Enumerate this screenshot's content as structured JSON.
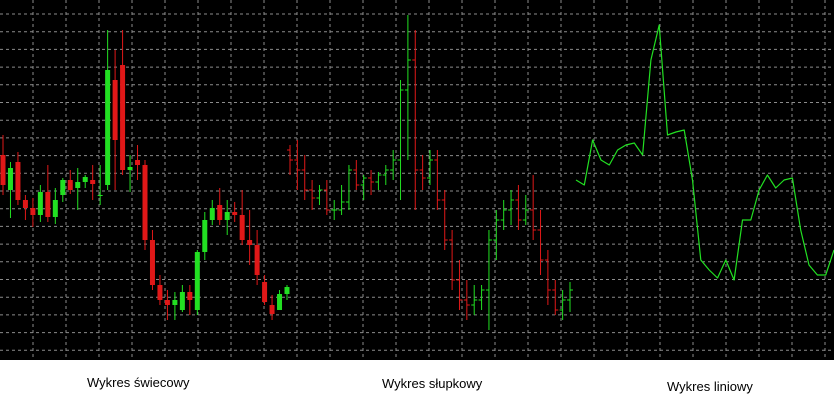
{
  "captions": {
    "candlestick": "Wykres świecowy",
    "bar": "Wykres słupkowy",
    "line": "Wykres liniowy"
  },
  "colors": {
    "background": "#000000",
    "grid": "#8c8c8c",
    "up": "#22e022",
    "down": "#e01818",
    "line": "#22e022"
  },
  "chart_data": [
    {
      "type": "candlestick",
      "title": "Wykres świecowy",
      "grid": true,
      "ylim": [
        0,
        360
      ],
      "candles": [
        {
          "o": 205,
          "h": 225,
          "l": 165,
          "c": 175
        },
        {
          "o": 170,
          "h": 198,
          "l": 142,
          "c": 192
        },
        {
          "o": 198,
          "h": 208,
          "l": 155,
          "c": 160
        },
        {
          "o": 160,
          "h": 165,
          "l": 140,
          "c": 152
        },
        {
          "o": 152,
          "h": 162,
          "l": 133,
          "c": 145
        },
        {
          "o": 145,
          "h": 175,
          "l": 138,
          "c": 168
        },
        {
          "o": 168,
          "h": 195,
          "l": 138,
          "c": 143
        },
        {
          "o": 143,
          "h": 172,
          "l": 136,
          "c": 160
        },
        {
          "o": 165,
          "h": 182,
          "l": 158,
          "c": 180
        },
        {
          "o": 180,
          "h": 190,
          "l": 166,
          "c": 170
        },
        {
          "o": 172,
          "h": 192,
          "l": 150,
          "c": 178
        },
        {
          "o": 178,
          "h": 185,
          "l": 172,
          "c": 183
        },
        {
          "o": 180,
          "h": 195,
          "l": 160,
          "c": 176
        },
        {
          "o": 165,
          "h": 195,
          "l": 155,
          "c": 165
        },
        {
          "o": 175,
          "h": 330,
          "l": 170,
          "c": 290
        },
        {
          "o": 280,
          "h": 310,
          "l": 170,
          "c": 220
        },
        {
          "o": 295,
          "h": 330,
          "l": 185,
          "c": 190
        },
        {
          "o": 190,
          "h": 205,
          "l": 168,
          "c": 193
        },
        {
          "o": 200,
          "h": 215,
          "l": 180,
          "c": 195
        },
        {
          "o": 195,
          "h": 200,
          "l": 110,
          "c": 120
        },
        {
          "o": 120,
          "h": 130,
          "l": 70,
          "c": 75
        },
        {
          "o": 75,
          "h": 85,
          "l": 55,
          "c": 60
        },
        {
          "o": 60,
          "h": 70,
          "l": 40,
          "c": 55
        },
        {
          "o": 55,
          "h": 68,
          "l": 40,
          "c": 60
        },
        {
          "o": 50,
          "h": 75,
          "l": 48,
          "c": 68
        },
        {
          "o": 68,
          "h": 75,
          "l": 45,
          "c": 60
        },
        {
          "o": 50,
          "h": 110,
          "l": 45,
          "c": 108
        },
        {
          "o": 108,
          "h": 148,
          "l": 100,
          "c": 140
        },
        {
          "o": 140,
          "h": 160,
          "l": 135,
          "c": 152
        },
        {
          "o": 155,
          "h": 172,
          "l": 135,
          "c": 140
        },
        {
          "o": 140,
          "h": 160,
          "l": 125,
          "c": 148
        },
        {
          "o": 148,
          "h": 158,
          "l": 138,
          "c": 145
        },
        {
          "o": 145,
          "h": 170,
          "l": 115,
          "c": 120
        },
        {
          "o": 120,
          "h": 150,
          "l": 95,
          "c": 115
        },
        {
          "o": 115,
          "h": 130,
          "l": 75,
          "c": 85
        },
        {
          "o": 78,
          "h": 85,
          "l": 55,
          "c": 58
        },
        {
          "o": 55,
          "h": 65,
          "l": 40,
          "c": 46
        },
        {
          "o": 50,
          "h": 70,
          "l": 50,
          "c": 66
        },
        {
          "o": 66,
          "h": 75,
          "l": 60,
          "c": 73
        }
      ]
    },
    {
      "type": "bar",
      "title": "Wykres słupkowy",
      "grid": true,
      "ylim": [
        0,
        360
      ],
      "bars": [
        {
          "o": 210,
          "h": 215,
          "l": 185,
          "c": 200
        },
        {
          "o": 200,
          "h": 220,
          "l": 170,
          "c": 190
        },
        {
          "o": 190,
          "h": 205,
          "l": 160,
          "c": 170
        },
        {
          "o": 170,
          "h": 180,
          "l": 150,
          "c": 162
        },
        {
          "o": 162,
          "h": 175,
          "l": 155,
          "c": 170
        },
        {
          "o": 170,
          "h": 180,
          "l": 145,
          "c": 150
        },
        {
          "o": 150,
          "h": 160,
          "l": 140,
          "c": 150
        },
        {
          "o": 150,
          "h": 175,
          "l": 145,
          "c": 158
        },
        {
          "o": 158,
          "h": 195,
          "l": 150,
          "c": 190
        },
        {
          "o": 190,
          "h": 200,
          "l": 170,
          "c": 175
        },
        {
          "o": 175,
          "h": 185,
          "l": 160,
          "c": 182
        },
        {
          "o": 182,
          "h": 190,
          "l": 165,
          "c": 178
        },
        {
          "o": 178,
          "h": 188,
          "l": 170,
          "c": 185
        },
        {
          "o": 185,
          "h": 195,
          "l": 175,
          "c": 190
        },
        {
          "o": 190,
          "h": 210,
          "l": 180,
          "c": 200
        },
        {
          "o": 200,
          "h": 280,
          "l": 160,
          "c": 270
        },
        {
          "o": 270,
          "h": 345,
          "l": 200,
          "c": 300
        },
        {
          "o": 300,
          "h": 330,
          "l": 150,
          "c": 190
        },
        {
          "o": 190,
          "h": 205,
          "l": 170,
          "c": 182
        },
        {
          "o": 182,
          "h": 210,
          "l": 175,
          "c": 200
        },
        {
          "o": 200,
          "h": 210,
          "l": 150,
          "c": 160
        },
        {
          "o": 160,
          "h": 170,
          "l": 110,
          "c": 120
        },
        {
          "o": 120,
          "h": 130,
          "l": 70,
          "c": 80
        },
        {
          "o": 80,
          "h": 100,
          "l": 50,
          "c": 60
        },
        {
          "o": 60,
          "h": 80,
          "l": 40,
          "c": 55
        },
        {
          "o": 55,
          "h": 75,
          "l": 45,
          "c": 60
        },
        {
          "o": 60,
          "h": 75,
          "l": 50,
          "c": 70
        },
        {
          "o": 70,
          "h": 130,
          "l": 30,
          "c": 120
        },
        {
          "o": 120,
          "h": 150,
          "l": 100,
          "c": 140
        },
        {
          "o": 140,
          "h": 160,
          "l": 130,
          "c": 150
        },
        {
          "o": 150,
          "h": 170,
          "l": 135,
          "c": 160
        },
        {
          "o": 160,
          "h": 175,
          "l": 130,
          "c": 140
        },
        {
          "o": 140,
          "h": 165,
          "l": 135,
          "c": 150
        },
        {
          "o": 150,
          "h": 185,
          "l": 120,
          "c": 130
        },
        {
          "o": 130,
          "h": 150,
          "l": 85,
          "c": 100
        },
        {
          "o": 100,
          "h": 110,
          "l": 55,
          "c": 70
        },
        {
          "o": 70,
          "h": 80,
          "l": 45,
          "c": 50
        },
        {
          "o": 50,
          "h": 70,
          "l": 40,
          "c": 60
        },
        {
          "o": 60,
          "h": 78,
          "l": 48,
          "c": 70
        }
      ]
    },
    {
      "type": "line",
      "title": "Wykres liniowy",
      "grid": true,
      "ylim": [
        0,
        360
      ],
      "values": [
        180,
        175,
        220,
        200,
        195,
        210,
        215,
        217,
        205,
        300,
        335,
        225,
        228,
        230,
        180,
        100,
        90,
        82,
        100,
        80,
        140,
        140,
        170,
        185,
        172,
        180,
        182,
        130,
        95,
        85,
        85,
        110
      ]
    }
  ]
}
